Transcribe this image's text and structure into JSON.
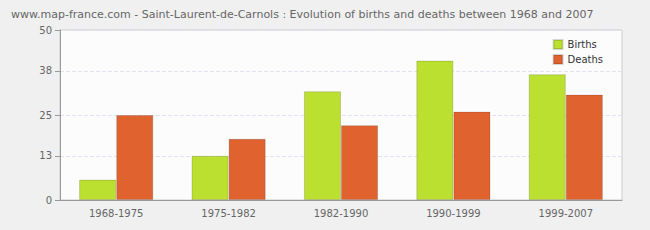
{
  "chart_data": {
    "type": "bar",
    "title": "www.map-france.com - Saint-Laurent-de-Carnols : Evolution of births and deaths between 1968 and 2007",
    "categories": [
      "1968-1975",
      "1975-1982",
      "1982-1990",
      "1990-1999",
      "1999-2007"
    ],
    "series": [
      {
        "name": "Births",
        "color": "#bbe02f",
        "values": [
          6,
          13,
          32,
          41,
          37
        ]
      },
      {
        "name": "Deaths",
        "color": "#e0632f",
        "values": [
          25,
          18,
          22,
          26,
          31
        ]
      }
    ],
    "ylim": [
      0,
      50
    ],
    "yticks": [
      0,
      13,
      25,
      38,
      50
    ],
    "grid": true,
    "legend": "top-right"
  }
}
